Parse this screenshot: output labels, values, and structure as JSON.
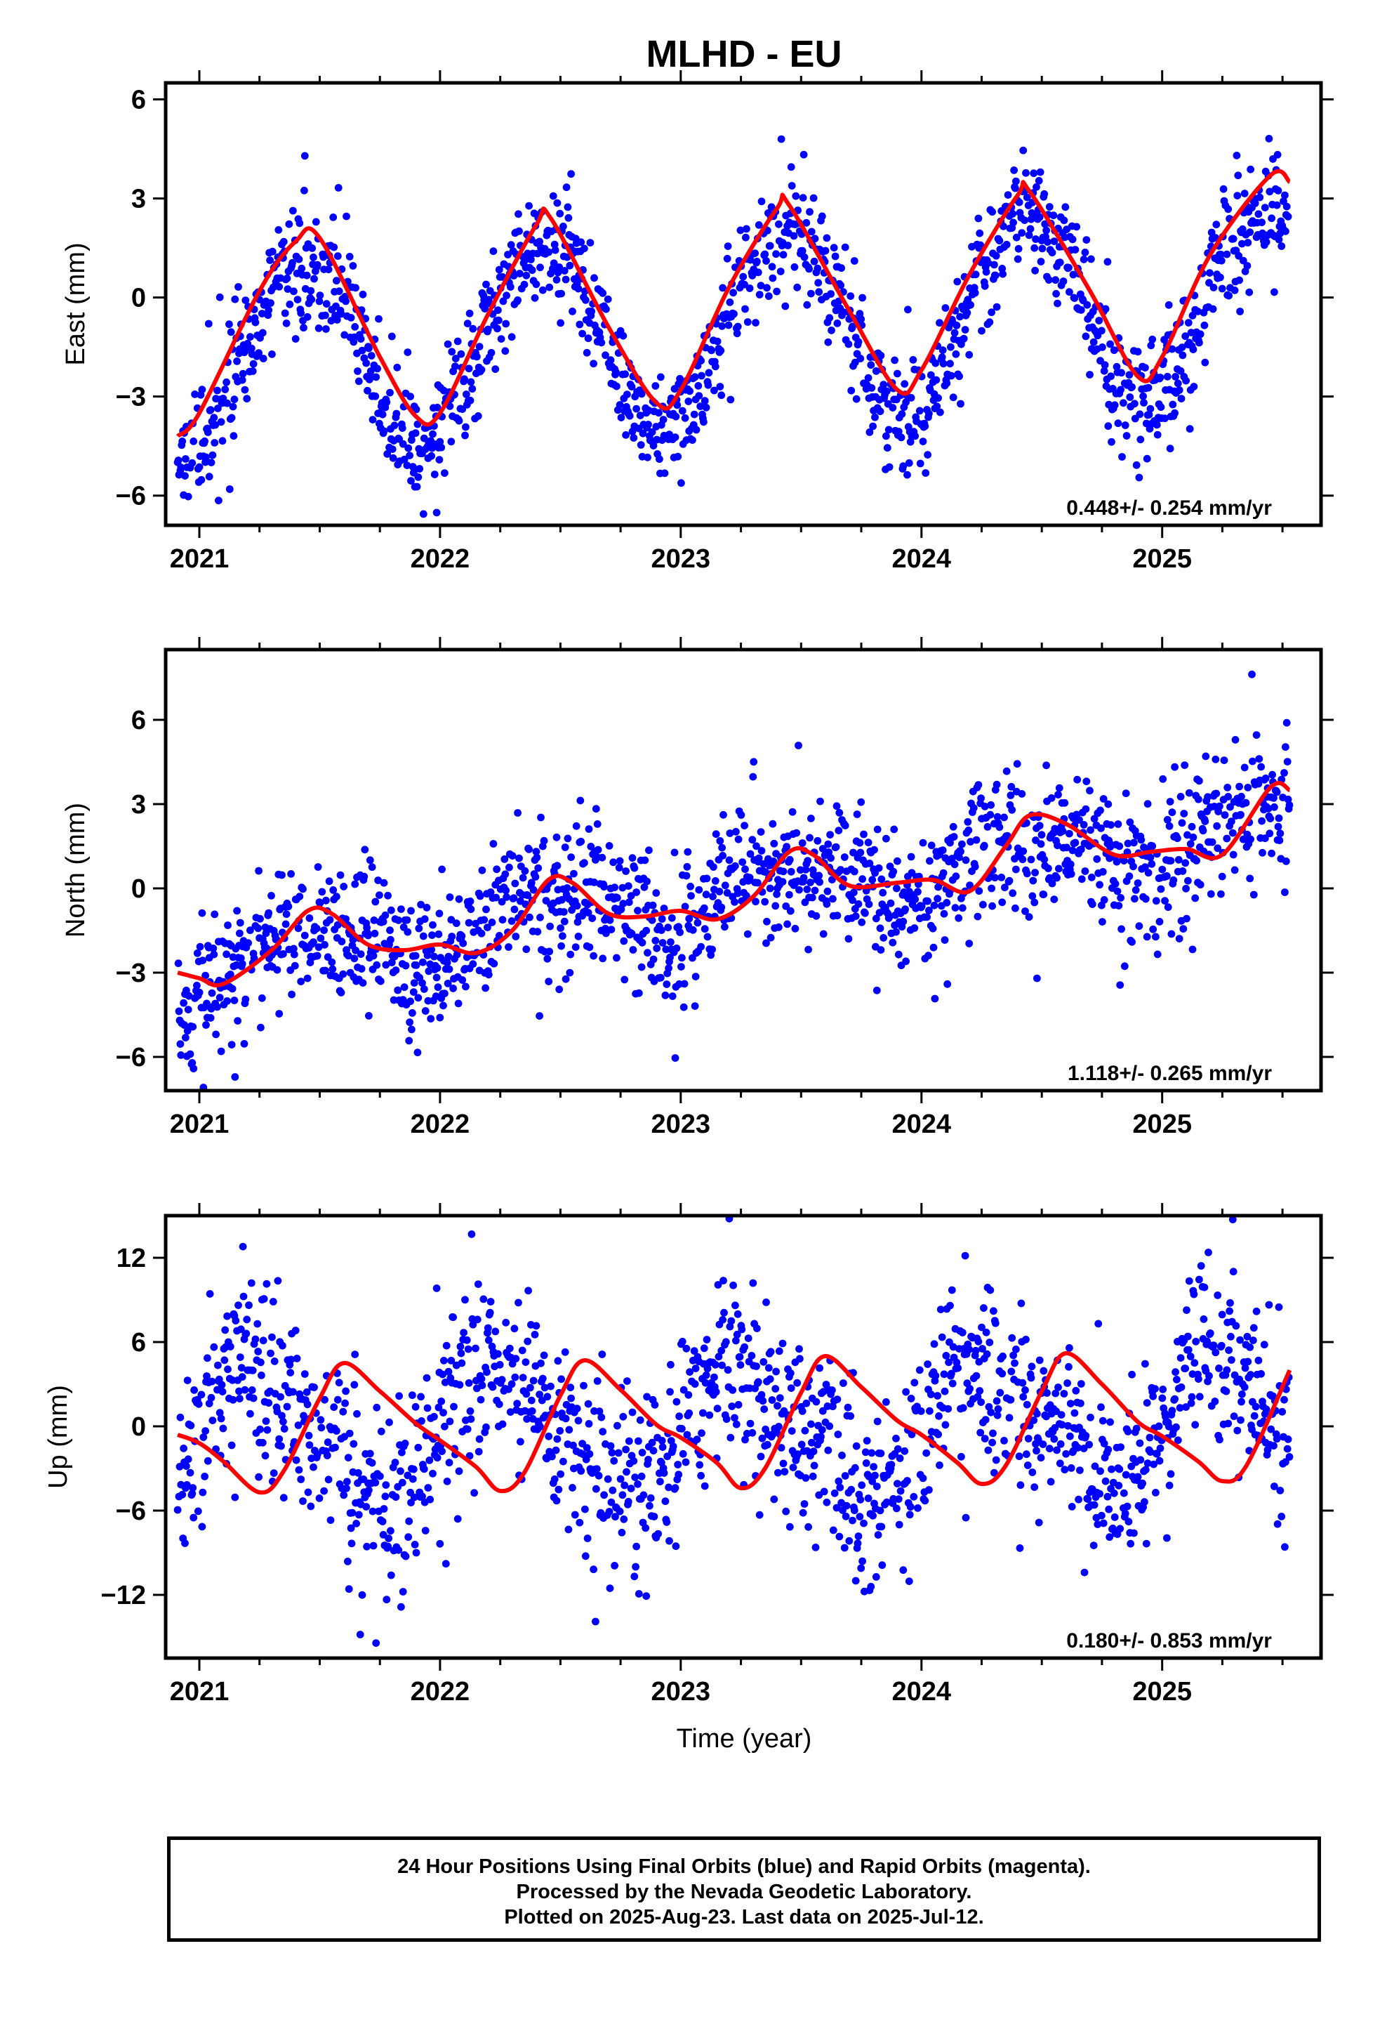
{
  "title": "MLHD - EU",
  "xlabel": "Time (year)",
  "footer": {
    "line1": "24 Hour Positions Using Final Orbits (blue) and Rapid Orbits (magenta).",
    "line2": "Processed by the Nevada Geodetic Laboratory.",
    "line3": "Plotted on 2025-Aug-23. Last data on 2025-Jul-12."
  },
  "colors": {
    "points": "#0000ff",
    "fit": "#ff0000",
    "frame": "#000000"
  },
  "chart_data": [
    {
      "type": "scatter",
      "ylabel": "East (mm)",
      "rate_label": "0.448+/- 0.254 mm/yr",
      "xlim": [
        2020.86,
        2025.66
      ],
      "ylim": [
        -6.9,
        6.5
      ],
      "xticks": [
        2021,
        2022,
        2023,
        2024,
        2025
      ],
      "yticks": [
        -6,
        -3,
        0,
        3,
        6
      ],
      "yticklabels": [
        "−6",
        "−3",
        "0",
        "3",
        "6"
      ],
      "series": [
        {
          "kind": "points",
          "trend": 0.448,
          "offset": -0.9,
          "annual_amp": 2.95,
          "annual_phase": 0.18,
          "semi_amp": 0.15,
          "semi_phase": 0.0,
          "noise": 0.9,
          "outlier_rate": 0.01,
          "x_start": 2020.91,
          "x_end": 2025.53,
          "step_days": 1
        },
        {
          "kind": "fit",
          "x": [
            2020.91,
            2021.0,
            2021.25,
            2021.4,
            2021.5,
            2021.75,
            2021.9,
            2022.0,
            2022.2,
            2022.4,
            2022.46,
            2022.7,
            2022.9,
            2023.0,
            2023.2,
            2023.4,
            2023.45,
            2023.7,
            2023.9,
            2024.0,
            2024.2,
            2024.4,
            2024.45,
            2024.7,
            2024.9,
            2025.0,
            2025.2,
            2025.45,
            2025.53
          ],
          "y": [
            -4.2,
            -3.5,
            0.2,
            1.7,
            1.8,
            -1.8,
            -3.6,
            -3.5,
            -0.5,
            2.2,
            2.4,
            -0.9,
            -3.2,
            -2.8,
            0.3,
            2.7,
            2.8,
            -0.4,
            -2.8,
            -2.2,
            0.7,
            3.1,
            3.2,
            0.2,
            -2.4,
            -1.8,
            1.3,
            3.7,
            3.5
          ]
        }
      ]
    },
    {
      "type": "scatter",
      "ylabel": "North (mm)",
      "rate_label": "1.118+/- 0.265 mm/yr",
      "xlim": [
        2020.86,
        2025.66
      ],
      "ylim": [
        -7.2,
        8.5
      ],
      "xticks": [
        2021,
        2022,
        2023,
        2024,
        2025
      ],
      "yticks": [
        -6,
        -3,
        0,
        3,
        6
      ],
      "yticklabels": [
        "−6",
        "−3",
        "0",
        "3",
        "6"
      ],
      "series": [
        {
          "kind": "points",
          "trend": 1.118,
          "offset": -0.3,
          "annual_amp": 0.9,
          "annual_phase": 0.2,
          "semi_amp": 0.4,
          "semi_phase": 0.1,
          "noise": 1.25,
          "outlier_rate": 0.01,
          "x_start": 2020.91,
          "x_end": 2025.53,
          "step_days": 1
        },
        {
          "kind": "fit",
          "x": [
            2020.91,
            2021.0,
            2021.1,
            2021.3,
            2021.45,
            2021.55,
            2021.7,
            2021.85,
            2022.0,
            2022.15,
            2022.3,
            2022.45,
            2022.55,
            2022.7,
            2022.85,
            2023.0,
            2023.15,
            2023.3,
            2023.45,
            2023.55,
            2023.7,
            2023.9,
            2024.05,
            2024.2,
            2024.35,
            2024.45,
            2024.6,
            2024.8,
            2024.95,
            2025.1,
            2025.25,
            2025.45,
            2025.53
          ],
          "y": [
            -3.0,
            -3.2,
            -3.4,
            -2.2,
            -0.8,
            -0.9,
            -2.0,
            -2.2,
            -2.0,
            -2.3,
            -1.5,
            0.3,
            0.2,
            -0.9,
            -1.0,
            -0.8,
            -1.1,
            -0.3,
            1.3,
            1.2,
            0.1,
            0.2,
            0.3,
            -0.1,
            1.5,
            2.6,
            2.3,
            1.2,
            1.3,
            1.4,
            1.2,
            3.6,
            3.5
          ]
        }
      ]
    },
    {
      "type": "scatter",
      "ylabel": "Up (mm)",
      "rate_label": "0.180+/- 0.853 mm/yr",
      "xlim": [
        2020.86,
        2025.66
      ],
      "ylim": [
        -16.5,
        15.0
      ],
      "xticks": [
        2021,
        2022,
        2023,
        2024,
        2025
      ],
      "yticks": [
        -12,
        -6,
        0,
        6,
        12
      ],
      "yticklabels": [
        "−12",
        "−6",
        "0",
        "6",
        "12"
      ],
      "series": [
        {
          "kind": "points",
          "trend": 0.18,
          "offset": 0.0,
          "annual_amp": 4.5,
          "annual_phase": 0.0,
          "semi_amp": 1.2,
          "semi_phase": 0.0,
          "noise": 3.3,
          "outlier_rate": 0.01,
          "x_start": 2020.91,
          "x_end": 2025.53,
          "step_days": 1
        },
        {
          "kind": "fit",
          "x": [
            2020.91,
            2021.0,
            2021.1,
            2021.25,
            2021.35,
            2021.5,
            2021.6,
            2021.75,
            2021.9,
            2022.0,
            2022.15,
            2022.25,
            2022.35,
            2022.5,
            2022.6,
            2022.75,
            2022.9,
            2023.0,
            2023.15,
            2023.25,
            2023.35,
            2023.5,
            2023.6,
            2023.75,
            2023.9,
            2024.0,
            2024.15,
            2024.25,
            2024.35,
            2024.5,
            2024.6,
            2024.75,
            2024.9,
            2025.0,
            2025.15,
            2025.25,
            2025.35,
            2025.53
          ],
          "y": [
            -0.6,
            -1.2,
            -2.5,
            -4.7,
            -3.2,
            2.0,
            4.5,
            2.5,
            0.2,
            -1.0,
            -2.9,
            -4.6,
            -3.3,
            2.2,
            4.7,
            2.6,
            0.1,
            -0.8,
            -2.6,
            -4.4,
            -3.0,
            2.4,
            5.0,
            2.8,
            0.4,
            -0.6,
            -2.6,
            -4.1,
            -2.8,
            2.5,
            5.2,
            3.0,
            0.3,
            -0.7,
            -2.5,
            -3.9,
            -2.8,
            4.0
          ]
        }
      ]
    }
  ]
}
